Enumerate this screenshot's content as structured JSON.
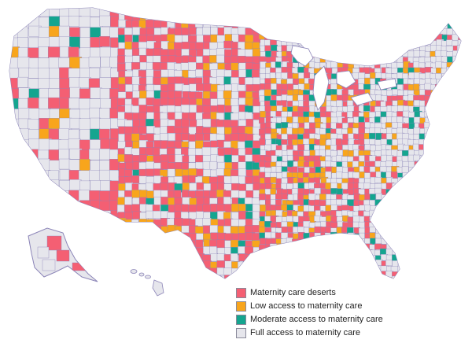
{
  "legend": {
    "items": [
      {
        "key": "desert",
        "label": "Maternity care deserts",
        "color": "#f45f73"
      },
      {
        "key": "low",
        "label": "Low access to maternity care",
        "color": "#f8a51c"
      },
      {
        "key": "moderate",
        "label": "Moderate access to maternity care",
        "color": "#14a58f"
      },
      {
        "key": "full",
        "label": "Full access to maternity care",
        "color": "#e6e6ec"
      }
    ]
  },
  "colors": {
    "border": "#8c85b8",
    "background": "#ffffff"
  }
}
